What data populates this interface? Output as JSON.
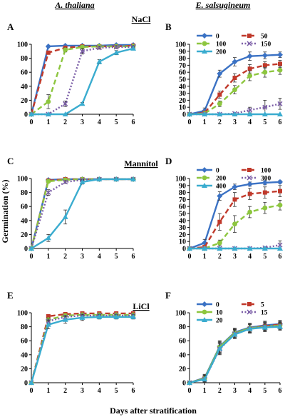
{
  "figure": {
    "column_headers": [
      "A. thaliana",
      "E. salsugineum"
    ],
    "row_titles": [
      "NaCl",
      "Mannitol",
      "LiCl"
    ],
    "y_label": "Germination (%)",
    "x_label": "Days after stratification"
  },
  "colors": {
    "blue": "#3b72c4",
    "red": "#c0392b",
    "green": "#8dc63f",
    "purple": "#7b5ea7",
    "cyan": "#3aaccf",
    "axis": "#000000"
  },
  "chart_data": [
    {
      "panel": "A",
      "type": "line",
      "row": "NaCl",
      "column": "A. thaliana",
      "x": [
        0,
        1,
        2,
        3,
        4,
        5,
        6
      ],
      "ylim": [
        0,
        100
      ],
      "yticks": [
        0,
        20,
        40,
        60,
        80,
        100
      ],
      "grid": false,
      "legend": null,
      "series": [
        {
          "values": [
            0,
            97,
            98,
            98,
            98,
            99,
            99
          ],
          "color": "blue",
          "dash": "solid",
          "marker": "diamond",
          "errors": [
            0,
            1,
            1,
            1,
            1,
            1,
            1
          ]
        },
        {
          "values": [
            0,
            88,
            95,
            97,
            97,
            97,
            98
          ],
          "color": "red",
          "dash": "dash",
          "marker": "square",
          "errors": [
            0,
            2,
            2,
            1,
            1,
            1,
            1
          ]
        },
        {
          "values": [
            0,
            18,
            92,
            96,
            97,
            97,
            97
          ],
          "color": "green",
          "dash": "dash",
          "marker": "circle",
          "errors": [
            0,
            10,
            3,
            2,
            1,
            1,
            1
          ]
        },
        {
          "values": [
            0,
            0,
            15,
            90,
            95,
            96,
            96
          ],
          "color": "purple",
          "dash": "dot",
          "marker": "x",
          "errors": [
            0,
            0,
            4,
            4,
            2,
            2,
            2
          ]
        },
        {
          "values": [
            0,
            0,
            0,
            15,
            75,
            88,
            94
          ],
          "color": "cyan",
          "dash": "solid",
          "marker": "triangle",
          "errors": [
            0,
            0,
            0,
            2,
            3,
            3,
            2
          ]
        }
      ]
    },
    {
      "panel": "B",
      "type": "line",
      "row": "NaCl",
      "column": "E. salsugineum",
      "x": [
        0,
        1,
        2,
        3,
        4,
        5,
        6
      ],
      "ylim": [
        0,
        100
      ],
      "yticks": [
        0,
        10,
        20,
        30,
        40,
        50,
        60,
        70,
        80,
        90,
        100
      ],
      "grid": false,
      "legend": "top-left, two columns",
      "series": [
        {
          "name": "0",
          "values": [
            0,
            5,
            58,
            75,
            83,
            84,
            85
          ],
          "color": "blue",
          "dash": "solid",
          "marker": "diamond",
          "errors": [
            1,
            4,
            5,
            6,
            6,
            5,
            4
          ]
        },
        {
          "name": "50",
          "values": [
            0,
            2,
            28,
            52,
            65,
            70,
            72
          ],
          "color": "red",
          "dash": "dash",
          "marker": "square",
          "errors": [
            1,
            2,
            5,
            6,
            6,
            5,
            5
          ]
        },
        {
          "name": "100",
          "values": [
            0,
            1,
            15,
            35,
            55,
            60,
            63
          ],
          "color": "green",
          "dash": "dash",
          "marker": "circle",
          "errors": [
            1,
            1,
            4,
            6,
            7,
            7,
            6
          ]
        },
        {
          "name": "150",
          "values": [
            0,
            0,
            0,
            1,
            6,
            10,
            15
          ],
          "color": "purple",
          "dash": "dot",
          "marker": "x",
          "errors": [
            0,
            0,
            0,
            1,
            4,
            10,
            8
          ]
        },
        {
          "name": "200",
          "values": [
            0,
            0,
            0,
            0,
            0,
            0,
            0
          ],
          "color": "cyan",
          "dash": "solid",
          "marker": "triangle",
          "errors": [
            0,
            0,
            0,
            0,
            0,
            0,
            0
          ]
        }
      ]
    },
    {
      "panel": "C",
      "type": "line",
      "row": "Mannitol",
      "column": "A. thaliana",
      "x": [
        0,
        1,
        2,
        3,
        4,
        5,
        6
      ],
      "ylim": [
        0,
        100
      ],
      "yticks": [
        0,
        20,
        40,
        60,
        80,
        100
      ],
      "grid": false,
      "legend": null,
      "series": [
        {
          "values": [
            0,
            98,
            99,
            99,
            99,
            99,
            99
          ],
          "color": "blue",
          "dash": "solid",
          "marker": "diamond",
          "errors": [
            0,
            1,
            1,
            1,
            1,
            1,
            1
          ]
        },
        {
          "values": [
            0,
            97,
            99,
            99,
            99,
            99,
            99
          ],
          "color": "red",
          "dash": "dash",
          "marker": "square",
          "errors": [
            0,
            1,
            1,
            1,
            1,
            1,
            1
          ]
        },
        {
          "values": [
            0,
            96,
            98,
            99,
            99,
            99,
            99
          ],
          "color": "green",
          "dash": "dash",
          "marker": "circle",
          "errors": [
            0,
            2,
            1,
            1,
            1,
            1,
            1
          ]
        },
        {
          "values": [
            0,
            80,
            95,
            98,
            99,
            99,
            99
          ],
          "color": "purple",
          "dash": "dot",
          "marker": "x",
          "errors": [
            0,
            4,
            2,
            1,
            1,
            1,
            1
          ]
        },
        {
          "values": [
            0,
            15,
            45,
            95,
            99,
            99,
            99
          ],
          "color": "cyan",
          "dash": "solid",
          "marker": "triangle",
          "errors": [
            0,
            5,
            10,
            3,
            1,
            1,
            1
          ]
        }
      ]
    },
    {
      "panel": "D",
      "type": "line",
      "row": "Mannitol",
      "column": "E. salsugineum",
      "x": [
        0,
        1,
        2,
        3,
        4,
        5,
        6
      ],
      "ylim": [
        0,
        100
      ],
      "yticks": [
        0,
        10,
        20,
        30,
        40,
        50,
        60,
        70,
        80,
        90,
        100
      ],
      "grid": false,
      "legend": "top-left, two columns",
      "series": [
        {
          "name": "0",
          "values": [
            0,
            8,
            75,
            88,
            92,
            94,
            95
          ],
          "color": "blue",
          "dash": "solid",
          "marker": "diamond",
          "errors": [
            1,
            5,
            6,
            4,
            3,
            3,
            2
          ]
        },
        {
          "name": "100",
          "values": [
            0,
            2,
            38,
            70,
            78,
            80,
            82
          ],
          "color": "red",
          "dash": "dash",
          "marker": "square",
          "errors": [
            1,
            2,
            12,
            10,
            8,
            8,
            8
          ]
        },
        {
          "name": "200",
          "values": [
            0,
            0,
            8,
            35,
            52,
            58,
            62
          ],
          "color": "green",
          "dash": "dash",
          "marker": "circle",
          "errors": [
            0,
            0,
            4,
            12,
            8,
            8,
            7
          ]
        },
        {
          "name": "300",
          "values": [
            0,
            0,
            0,
            0,
            0,
            1,
            5
          ],
          "color": "purple",
          "dash": "dot",
          "marker": "x",
          "errors": [
            0,
            0,
            0,
            0,
            0,
            1,
            6
          ]
        },
        {
          "name": "400",
          "values": [
            0,
            0,
            0,
            0,
            0,
            0,
            0
          ],
          "color": "cyan",
          "dash": "solid",
          "marker": "triangle",
          "errors": [
            0,
            0,
            0,
            0,
            0,
            0,
            0
          ]
        }
      ]
    },
    {
      "panel": "E",
      "type": "line",
      "row": "LiCl",
      "column": "A. thaliana",
      "x": [
        0,
        1,
        2,
        3,
        4,
        5,
        6
      ],
      "ylim": [
        0,
        100
      ],
      "yticks": [
        0,
        20,
        40,
        60,
        80,
        100
      ],
      "grid": false,
      "legend": null,
      "series": [
        {
          "values": [
            0,
            95,
            98,
            99,
            99,
            99,
            99
          ],
          "color": "red",
          "dash": "dash",
          "marker": "square",
          "errors": [
            0,
            2,
            2,
            1,
            1,
            1,
            1
          ]
        },
        {
          "values": [
            0,
            90,
            96,
            97,
            97,
            97,
            97
          ],
          "color": "green",
          "dash": "dash",
          "marker": "circle",
          "errors": [
            0,
            3,
            2,
            2,
            2,
            2,
            2
          ]
        },
        {
          "values": [
            0,
            88,
            94,
            96,
            96,
            96,
            96
          ],
          "color": "purple",
          "dash": "dot",
          "marker": "x",
          "errors": [
            0,
            3,
            2,
            2,
            2,
            2,
            2
          ]
        },
        {
          "values": [
            0,
            83,
            90,
            93,
            94,
            94,
            94
          ],
          "color": "cyan",
          "dash": "solid",
          "marker": "triangle",
          "errors": [
            0,
            6,
            5,
            4,
            3,
            3,
            3
          ]
        }
      ]
    },
    {
      "panel": "F",
      "type": "line",
      "row": "LiCl",
      "column": "E. salsugineum",
      "x": [
        0,
        1,
        2,
        3,
        4,
        5,
        6
      ],
      "ylim": [
        0,
        100
      ],
      "yticks": [
        0,
        20,
        40,
        60,
        80,
        100
      ],
      "grid": false,
      "legend": "top-left, two columns",
      "series": [
        {
          "name": "0",
          "values": [
            0,
            7,
            52,
            72,
            79,
            82,
            84
          ],
          "color": "blue",
          "dash": "solid",
          "marker": "diamond",
          "errors": [
            1,
            5,
            8,
            6,
            6,
            6,
            5
          ]
        },
        {
          "name": "5",
          "values": [
            0,
            6,
            50,
            70,
            78,
            81,
            83
          ],
          "color": "red",
          "dash": "dash",
          "marker": "square",
          "errors": [
            1,
            5,
            8,
            6,
            6,
            6,
            5
          ]
        },
        {
          "name": "10",
          "values": [
            0,
            6,
            51,
            71,
            78,
            80,
            82
          ],
          "color": "green",
          "dash": "solid",
          "marker": "circle",
          "errors": [
            1,
            5,
            8,
            6,
            6,
            6,
            5
          ]
        },
        {
          "name": "15",
          "values": [
            0,
            5,
            48,
            70,
            77,
            80,
            81
          ],
          "color": "purple",
          "dash": "dot",
          "marker": "x",
          "errors": [
            1,
            5,
            8,
            6,
            6,
            6,
            5
          ]
        },
        {
          "name": "20",
          "values": [
            0,
            5,
            49,
            69,
            77,
            79,
            80
          ],
          "color": "cyan",
          "dash": "solid",
          "marker": "triangle",
          "errors": [
            1,
            5,
            8,
            6,
            6,
            6,
            5
          ]
        }
      ]
    }
  ]
}
